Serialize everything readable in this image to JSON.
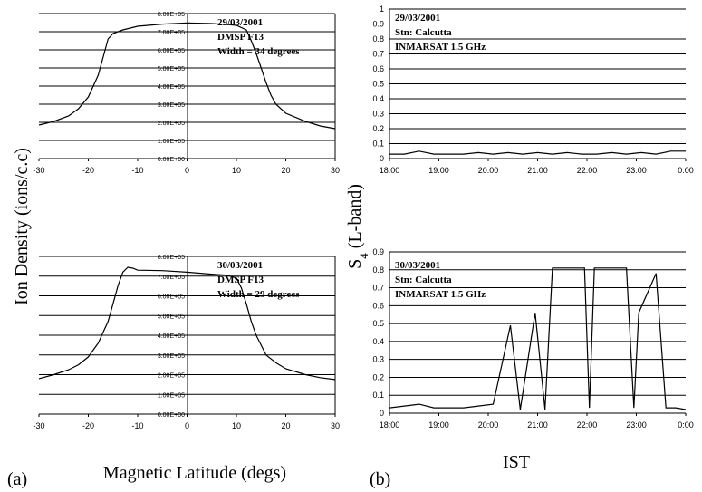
{
  "figure": {
    "ylabel_left": "Ion Density (ions/c.c)",
    "xlabel_left": "Magnetic Latitude (degs)",
    "ylabel_right_main": "S",
    "ylabel_right_sub": "4",
    "ylabel_right_rest": " (L-band)",
    "xlabel_right": "IST",
    "panel_a": "(a)",
    "panel_b": "(b)"
  },
  "chart_data": [
    {
      "id": "top-left",
      "type": "line",
      "annotations": [
        "29/03/2001",
        "DMSP F13",
        "Width = 34 degrees"
      ],
      "xlim": [
        -30,
        30
      ],
      "xticks": [
        -30,
        -20,
        -10,
        0,
        10,
        20,
        30
      ],
      "ylim": [
        0,
        800000
      ],
      "yticks": [
        "0.00E+00",
        "1.00E+05",
        "2.00E+05",
        "3.00E+05",
        "4.00E+05",
        "5.00E+05",
        "6.00E+05",
        "7.00E+05",
        "8.00E+05"
      ],
      "x": [
        -30,
        -27,
        -24,
        -22,
        -20,
        -18,
        -17,
        -16,
        -15,
        -13,
        -10,
        -5,
        0,
        5,
        8,
        10,
        12,
        13,
        14,
        15,
        16,
        17,
        18,
        20,
        24,
        27,
        30
      ],
      "y": [
        185000,
        205000,
        235000,
        275000,
        340000,
        460000,
        560000,
        660000,
        690000,
        710000,
        730000,
        742000,
        748000,
        745000,
        740000,
        735000,
        710000,
        650000,
        580000,
        500000,
        420000,
        350000,
        300000,
        250000,
        205000,
        180000,
        165000
      ]
    },
    {
      "id": "bottom-left",
      "type": "line",
      "annotations": [
        "30/03/2001",
        "DMSP F13",
        "Width = 29 degrees"
      ],
      "xlim": [
        -30,
        30
      ],
      "xticks": [
        -30,
        -20,
        -10,
        0,
        10,
        20,
        30
      ],
      "ylim": [
        0,
        800000
      ],
      "yticks": [
        "0.00E+00",
        "1.00E+05",
        "2.00E+05",
        "3.00E+05",
        "4.00E+05",
        "5.00E+05",
        "6.00E+05",
        "7.00E+05",
        "8.00E+05"
      ],
      "x": [
        -30,
        -27,
        -24,
        -22,
        -20,
        -18,
        -16,
        -15,
        -14,
        -13,
        -12,
        -11,
        -10,
        -5,
        0,
        5,
        8,
        10,
        11,
        12,
        13,
        14,
        15,
        16,
        18,
        20,
        24,
        27,
        30
      ],
      "y": [
        180000,
        200000,
        225000,
        250000,
        290000,
        360000,
        470000,
        560000,
        650000,
        720000,
        745000,
        740000,
        730000,
        728000,
        720000,
        710000,
        705000,
        690000,
        640000,
        560000,
        470000,
        400000,
        350000,
        300000,
        260000,
        230000,
        200000,
        185000,
        175000
      ]
    },
    {
      "id": "top-right",
      "type": "line",
      "annotations": [
        "29/03/2001",
        "Stn: Calcutta",
        "INMARSAT 1.5 GHz"
      ],
      "xlim": [
        18,
        24
      ],
      "xticks": [
        "18:00",
        "19:00",
        "20:00",
        "21:00",
        "22:00",
        "23:00",
        "0:00"
      ],
      "ylim": [
        0,
        1
      ],
      "yticks": [
        "0",
        "0.1",
        "0.2",
        "0.3",
        "0.4",
        "0.5",
        "0.6",
        "0.7",
        "0.8",
        "0.9",
        "1"
      ],
      "x": [
        18.0,
        18.3,
        18.6,
        18.9,
        19.2,
        19.5,
        19.8,
        20.1,
        20.4,
        20.7,
        21.0,
        21.3,
        21.6,
        21.9,
        22.2,
        22.5,
        22.8,
        23.1,
        23.4,
        23.7,
        24.0
      ],
      "y": [
        0.03,
        0.03,
        0.05,
        0.03,
        0.03,
        0.03,
        0.04,
        0.03,
        0.04,
        0.03,
        0.04,
        0.03,
        0.04,
        0.03,
        0.03,
        0.04,
        0.03,
        0.04,
        0.03,
        0.05,
        0.05
      ]
    },
    {
      "id": "bottom-right",
      "type": "line",
      "annotations": [
        "30/03/2001",
        "Stn: Calcutta",
        "INMARSAT 1.5 GHz"
      ],
      "xlim": [
        18,
        24
      ],
      "xticks": [
        "18:00",
        "19:00",
        "20:00",
        "21:00",
        "22:00",
        "23:00",
        "0:00"
      ],
      "ylim": [
        0,
        0.9
      ],
      "yticks": [
        "0",
        "0.1",
        "0.2",
        "0.3",
        "0.4",
        "0.5",
        "0.6",
        "0.7",
        "0.8",
        "0.9"
      ],
      "x": [
        18.0,
        18.3,
        18.6,
        18.9,
        19.2,
        19.5,
        19.8,
        20.1,
        20.45,
        20.65,
        20.95,
        21.15,
        21.3,
        21.95,
        22.05,
        22.15,
        22.8,
        22.95,
        23.05,
        23.4,
        23.6,
        23.8,
        24.0
      ],
      "y": [
        0.03,
        0.04,
        0.05,
        0.03,
        0.03,
        0.03,
        0.04,
        0.05,
        0.49,
        0.02,
        0.56,
        0.02,
        0.81,
        0.81,
        0.03,
        0.81,
        0.81,
        0.03,
        0.56,
        0.78,
        0.03,
        0.03,
        0.02
      ]
    }
  ]
}
